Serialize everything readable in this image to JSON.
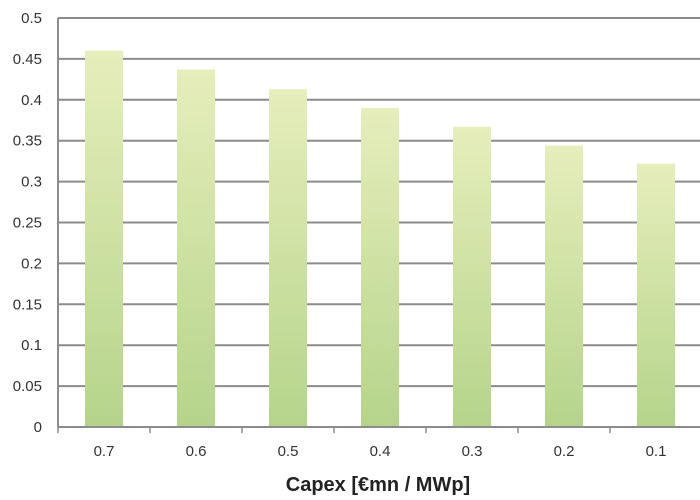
{
  "chart_data": {
    "type": "bar",
    "categories": [
      "0.7",
      "0.6",
      "0.5",
      "0.4",
      "0.3",
      "0.2",
      "0.1"
    ],
    "values": [
      0.46,
      0.437,
      0.413,
      0.39,
      0.367,
      0.344,
      0.322
    ],
    "title": "",
    "xlabel": "Capex [€mn / MWp]",
    "ylabel": "",
    "ylim": [
      0,
      0.5
    ],
    "yticks": [
      "0",
      "0.05",
      "0.1",
      "0.15",
      "0.2",
      "0.25",
      "0.3",
      "0.35",
      "0.4",
      "0.45",
      "0.5"
    ],
    "grid": true,
    "bar_color_top": "#e6eebc",
    "bar_color_bottom": "#b5d48a",
    "gridline_color": "#8c8c8c"
  }
}
